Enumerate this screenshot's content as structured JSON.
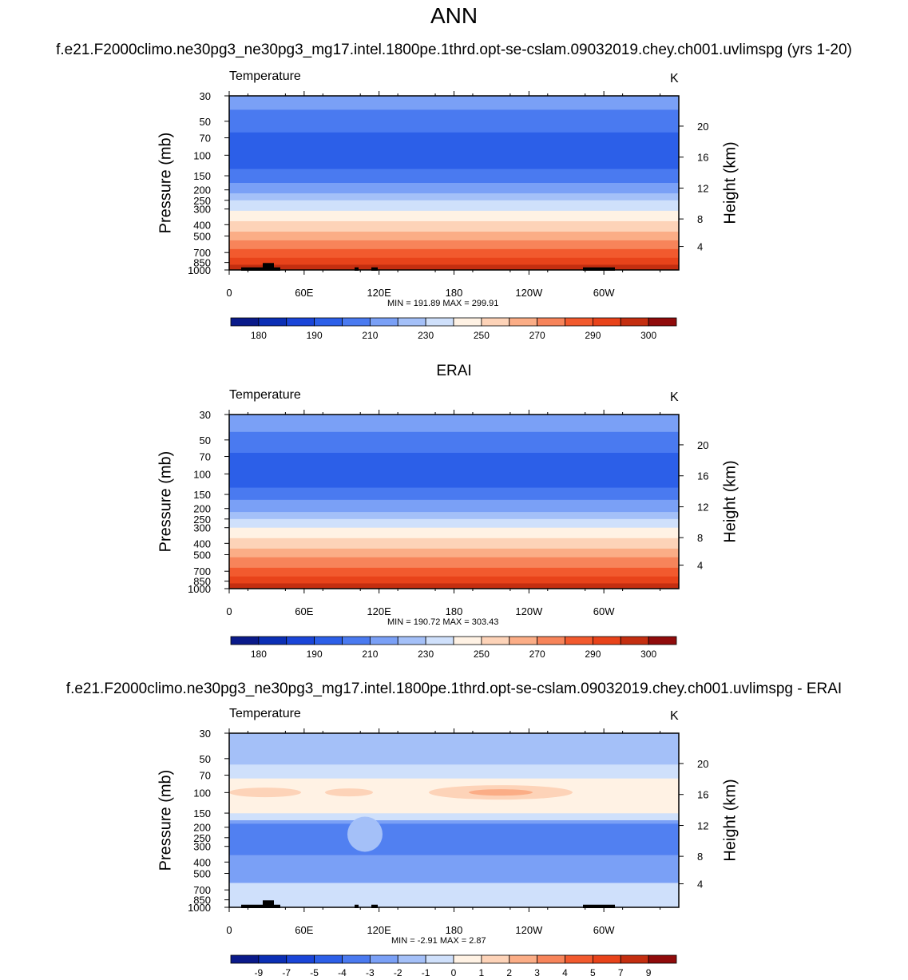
{
  "page": {
    "title": "ANN"
  },
  "chart_data": [
    {
      "type": "heatmap",
      "title": "f.e21.F2000climo.ne30pg3_ne30pg3_mg17.intel.1800pe.1thrd.opt-se-cslam.09032019.chey.ch001.uvlimspg (yrs 1-20)",
      "left_string": "Temperature",
      "right_string": "K",
      "ylabel": "Pressure (mb)",
      "y2label": "Height (km)",
      "x_ticks": [
        "0",
        "60E",
        "120E",
        "180",
        "120W",
        "60W"
      ],
      "y_ticks": [
        "30",
        "50",
        "70",
        "100",
        "150",
        "200",
        "250",
        "300",
        "400",
        "500",
        "700",
        "850",
        "1000"
      ],
      "y2_ticks": [
        "20",
        "16",
        "12",
        "8",
        "4"
      ],
      "minmax": "MIN = 191.89  MAX = 299.91",
      "colorbar_labels": [
        "180",
        "190",
        "210",
        "230",
        "250",
        "270",
        "290",
        "300"
      ],
      "field_summary": "bands by pressure level: 30-50 mb ~215K, 50-150 mb ~190-200K, 200-300 mb ~220-240K, 400-1000 mb ~250-295K"
    },
    {
      "type": "heatmap",
      "title": "ERAI",
      "left_string": "Temperature",
      "right_string": "K",
      "ylabel": "Pressure (mb)",
      "y2label": "Height (km)",
      "x_ticks": [
        "0",
        "60E",
        "120E",
        "180",
        "120W",
        "60W"
      ],
      "y_ticks": [
        "30",
        "50",
        "70",
        "100",
        "150",
        "200",
        "250",
        "300",
        "400",
        "500",
        "700",
        "850",
        "1000"
      ],
      "y2_ticks": [
        "20",
        "16",
        "12",
        "8",
        "4"
      ],
      "minmax": "MIN = 190.72  MAX = 303.43",
      "colorbar_labels": [
        "180",
        "190",
        "210",
        "230",
        "250",
        "270",
        "290",
        "300"
      ],
      "field_summary": "bands by pressure level, similar to the model panel"
    },
    {
      "type": "heatmap",
      "title": "f.e21.F2000climo.ne30pg3_ne30pg3_mg17.intel.1800pe.1thrd.opt-se-cslam.09032019.chey.ch001.uvlimspg - ERAI",
      "left_string": "Temperature",
      "right_string": "K",
      "ylabel": "Pressure (mb)",
      "y2label": "Height (km)",
      "x_ticks": [
        "0",
        "60E",
        "120E",
        "180",
        "120W",
        "60W"
      ],
      "y_ticks": [
        "30",
        "50",
        "70",
        "100",
        "150",
        "200",
        "250",
        "300",
        "400",
        "500",
        "700",
        "850",
        "1000"
      ],
      "y2_ticks": [
        "20",
        "16",
        "12",
        "8",
        "4"
      ],
      "minmax": "MIN =  -2.91  MAX =   2.87",
      "colorbar_labels": [
        "-9",
        "-7",
        "-5",
        "-4",
        "-3",
        "-2",
        "-1",
        "0",
        "1",
        "2",
        "3",
        "4",
        "5",
        "7",
        "9"
      ],
      "field_summary": "difference: ~-1.5 at 30-70 mb, +0.5 to +2 near 100 mb, -2 to -3 at 150-500 mb, -0.5 to -1 near surface"
    }
  ],
  "colors": {
    "temp_palette": [
      "#0a1a8a",
      "#0b2fb5",
      "#1a45d8",
      "#2c5fe8",
      "#4a7af0",
      "#7aa0f6",
      "#a4c0f8",
      "#cfe0fb",
      "#fff2e4",
      "#fdd3b8",
      "#fbad86",
      "#f7845a",
      "#f25a2e",
      "#e8431a",
      "#c42e10",
      "#900b0b"
    ],
    "diff_palette": [
      "#0a1a8a",
      "#0b2fb5",
      "#1a45d8",
      "#2c5fe8",
      "#4a7af0",
      "#7aa0f6",
      "#a4c0f8",
      "#cfe0fb",
      "#fff2e4",
      "#fdd3b8",
      "#fbad86",
      "#f7845a",
      "#f25a2e",
      "#e8431a",
      "#c42e10",
      "#900b0b"
    ]
  }
}
